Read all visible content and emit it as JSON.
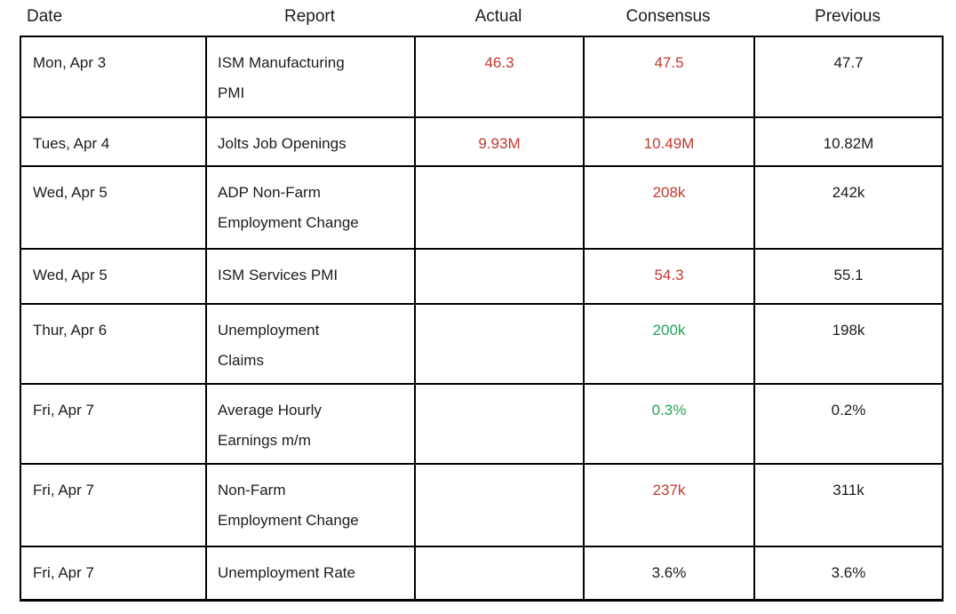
{
  "colors": {
    "red": "#C3392F",
    "green": "#26A359",
    "text": "#1C1C1C",
    "border": "#000000"
  },
  "table": {
    "columns": [
      {
        "label": "Date"
      },
      {
        "label": "Report"
      },
      {
        "label": "Actual"
      },
      {
        "label": "Consensus"
      },
      {
        "label": "Previous"
      }
    ],
    "rows": [
      {
        "date": "Mon, Apr 3",
        "report": "ISM Manufacturing\nPMI",
        "actual": "46.3",
        "actual_color": "red",
        "consensus": "47.5",
        "consensus_color": "red",
        "previous": "47.7"
      },
      {
        "date": "Tues, Apr 4",
        "report": "Jolts Job Openings",
        "actual": "9.93M",
        "actual_color": "red",
        "consensus": "10.49M",
        "consensus_color": "red",
        "previous": "10.82M"
      },
      {
        "date": "Wed, Apr 5",
        "report": "ADP Non-Farm\nEmployment Change",
        "actual": "",
        "actual_color": "black",
        "consensus": "208k",
        "consensus_color": "red",
        "previous": "242k"
      },
      {
        "date": "Wed, Apr 5",
        "report": "ISM Services PMI",
        "actual": "",
        "actual_color": "black",
        "consensus": "54.3",
        "consensus_color": "red",
        "previous": "55.1"
      },
      {
        "date": "Thur, Apr 6",
        "report": "Unemployment\nClaims",
        "actual": "",
        "actual_color": "black",
        "consensus": "200k",
        "consensus_color": "green",
        "previous": "198k"
      },
      {
        "date": "Fri, Apr 7",
        "report": "Average Hourly\nEarnings m/m",
        "actual": "",
        "actual_color": "black",
        "consensus": "0.3%",
        "consensus_color": "green",
        "previous": "0.2%"
      },
      {
        "date": "Fri, Apr 7",
        "report": "Non-Farm\nEmployment Change",
        "actual": "",
        "actual_color": "black",
        "consensus": "237k",
        "consensus_color": "red",
        "previous": "311k"
      },
      {
        "date": "Fri, Apr 7",
        "report": "Unemployment Rate",
        "actual": "",
        "actual_color": "black",
        "consensus": "3.6%",
        "consensus_color": "black",
        "previous": "3.6%"
      }
    ]
  }
}
